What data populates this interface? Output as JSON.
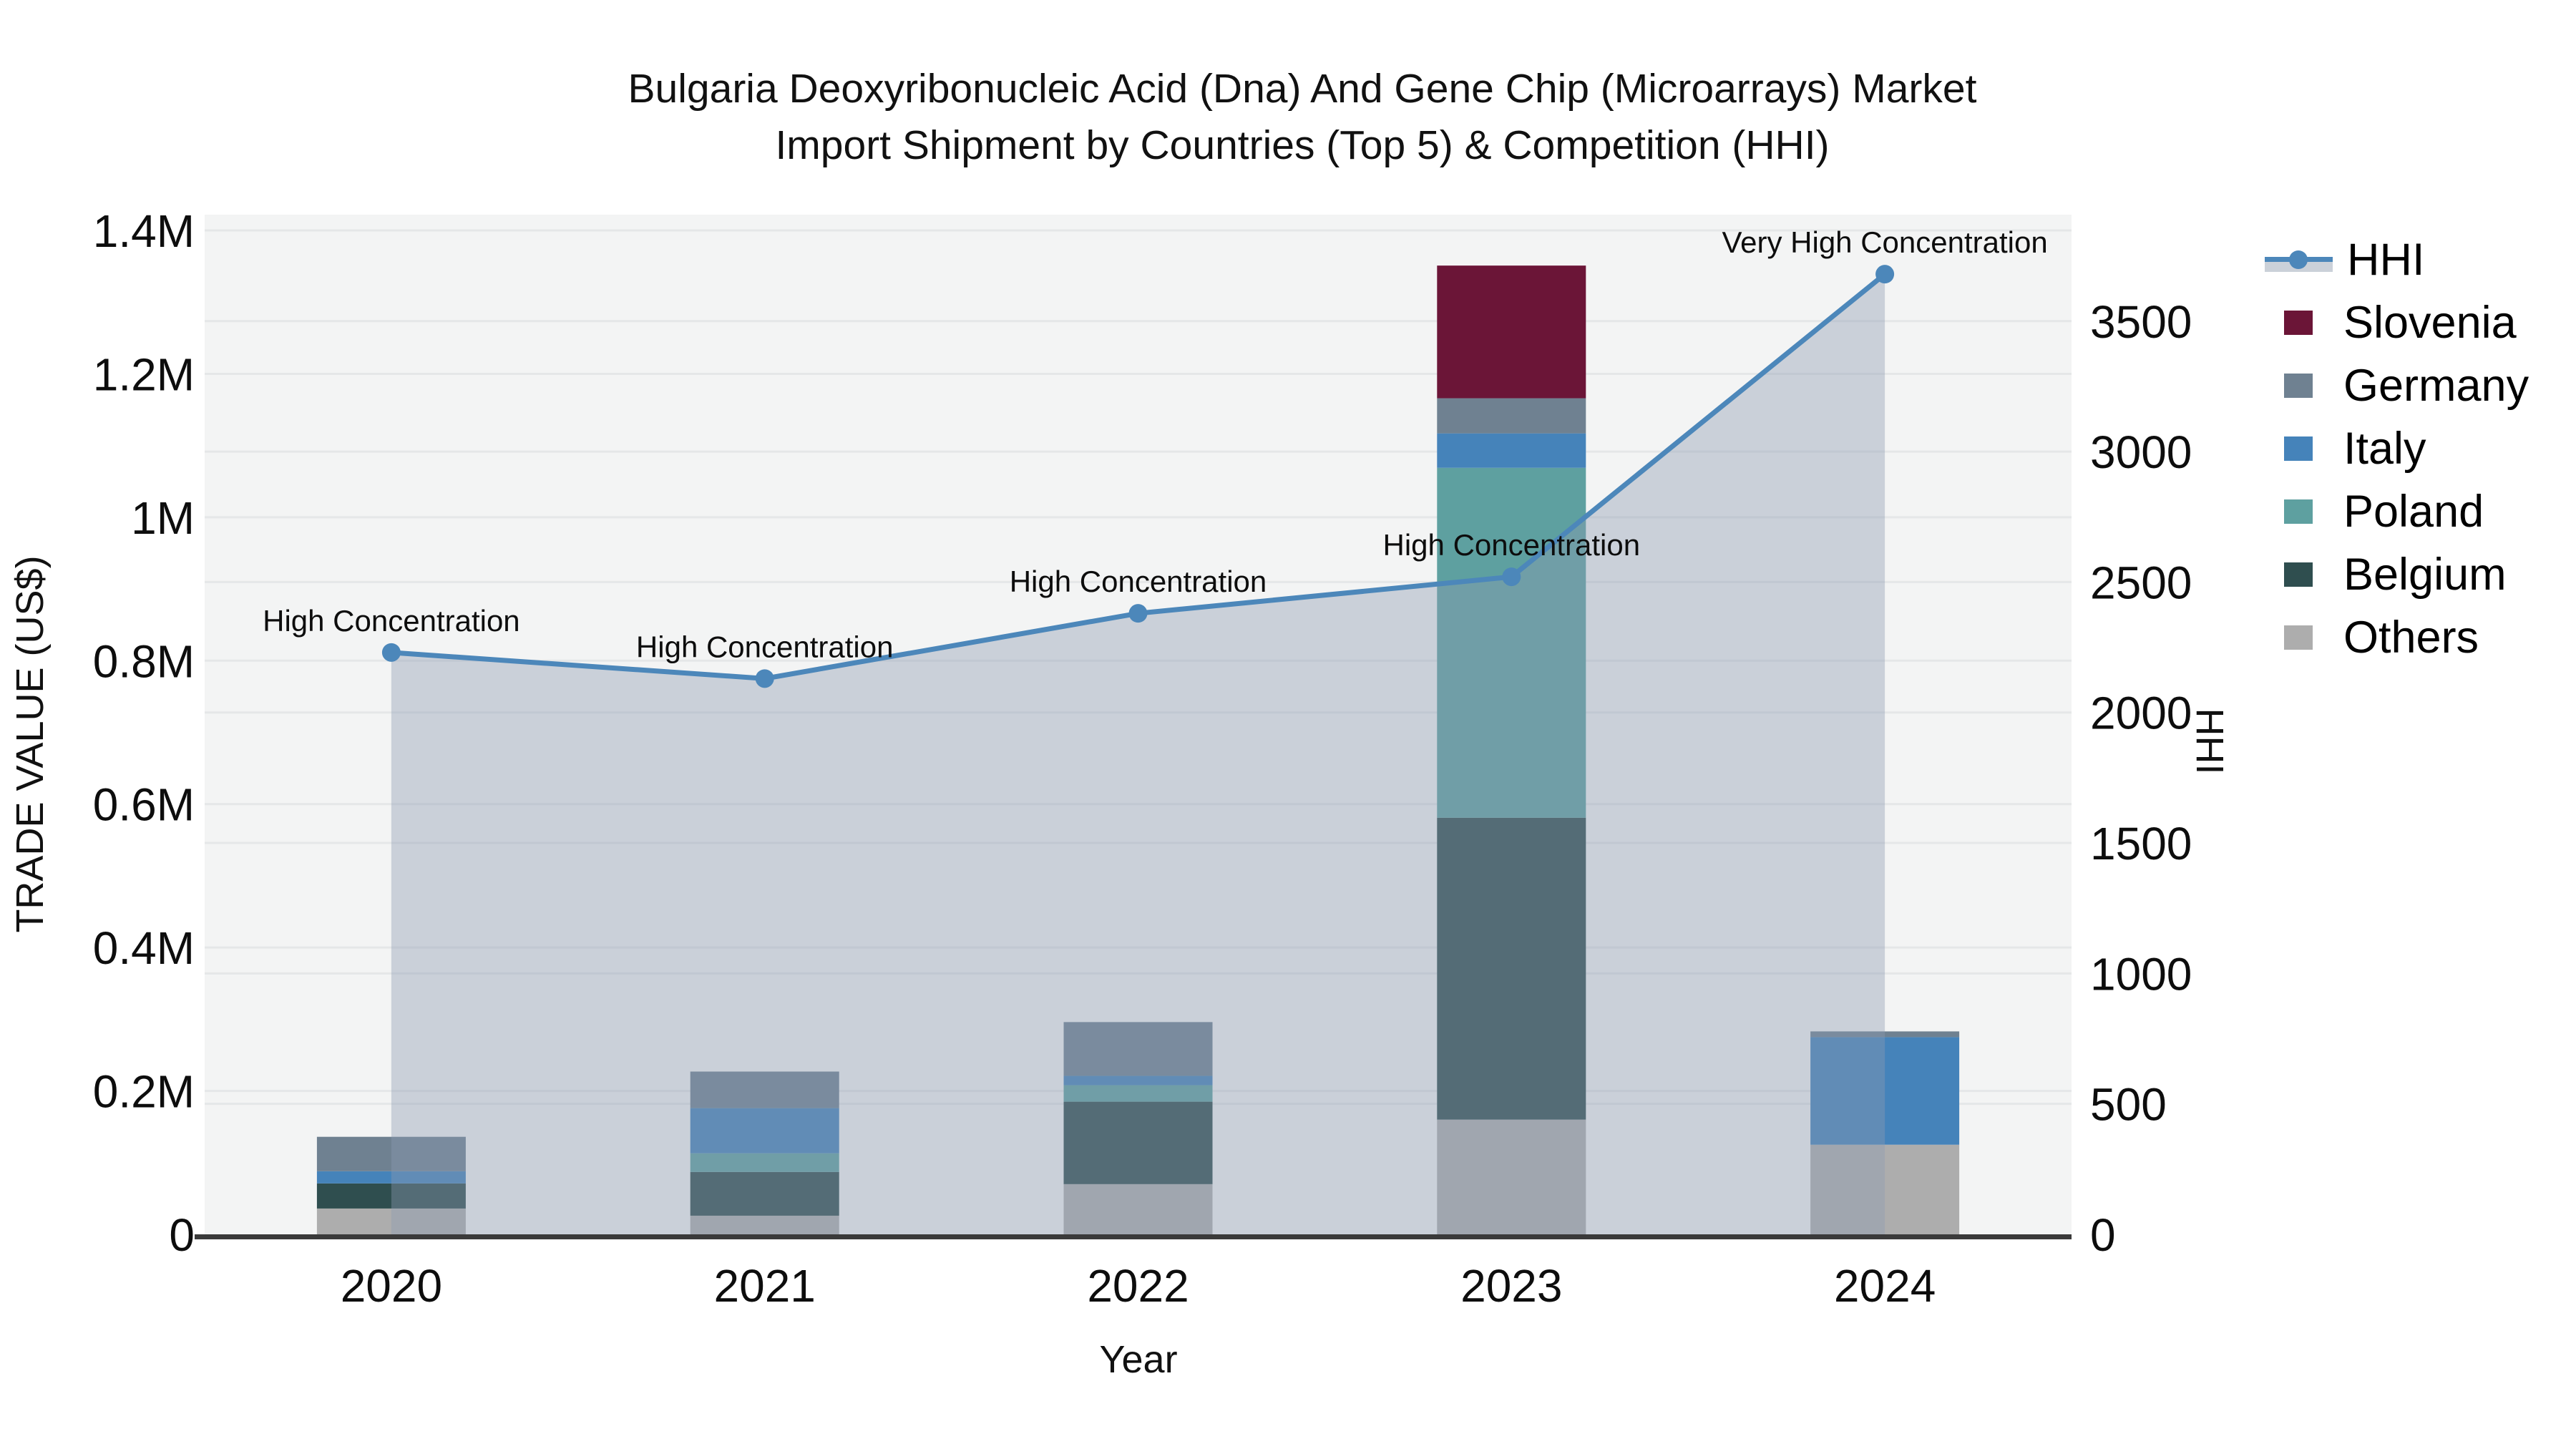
{
  "title": {
    "line1": "Bulgaria Deoxyribonucleic Acid (Dna) And Gene Chip (Microarrays) Market",
    "line2": "Import Shipment by Countries (Top 5) & Competition (HHI)"
  },
  "axes": {
    "left_title": "TRADE VALUE (US$)",
    "right_title": "HHI",
    "x_title": "Year"
  },
  "legend": {
    "items": [
      {
        "key": "hhi",
        "label": "HHI",
        "color": "#4C87BA"
      },
      {
        "key": "slovenia",
        "label": "Slovenia",
        "color": "#6B1537"
      },
      {
        "key": "germany",
        "label": "Germany",
        "color": "#6F8191"
      },
      {
        "key": "italy",
        "label": "Italy",
        "color": "#4583BA"
      },
      {
        "key": "poland",
        "label": "Poland",
        "color": "#5EA0A0"
      },
      {
        "key": "belgium",
        "label": "Belgium",
        "color": "#2F4E4F"
      },
      {
        "key": "others",
        "label": "Others",
        "color": "#ADADAD"
      }
    ]
  },
  "chart_data": {
    "type": "bar+line",
    "title": "Bulgaria Deoxyribonucleic Acid (Dna) And Gene Chip (Microarrays) Market Import Shipment by Countries (Top 5) & Competition (HHI)",
    "x": [
      "2020",
      "2021",
      "2022",
      "2023",
      "2024"
    ],
    "bar_stack_order_bottom_to_top": [
      "Others",
      "Belgium",
      "Poland",
      "Italy",
      "Germany",
      "Slovenia"
    ],
    "bar_series": [
      {
        "name": "Others",
        "color": "#ADADAD",
        "values": [
          36000,
          26000,
          70000,
          160000,
          125000
        ]
      },
      {
        "name": "Belgium",
        "color": "#2F4E4F",
        "values": [
          35000,
          61000,
          115000,
          421000,
          0
        ]
      },
      {
        "name": "Poland",
        "color": "#5EA0A0",
        "values": [
          0,
          26000,
          23000,
          488000,
          0
        ]
      },
      {
        "name": "Italy",
        "color": "#4583BA",
        "values": [
          17000,
          63000,
          13000,
          48000,
          150000
        ]
      },
      {
        "name": "Germany",
        "color": "#6F8191",
        "values": [
          48000,
          51000,
          75000,
          49000,
          8000
        ]
      },
      {
        "name": "Slovenia",
        "color": "#6B1537",
        "values": [
          0,
          0,
          0,
          185000,
          0
        ]
      }
    ],
    "line_series": {
      "name": "HHI",
      "color": "#4C87BA",
      "area_color": "rgba(141,155,178,0.40)",
      "values": [
        2230,
        2130,
        2380,
        2520,
        3680
      ]
    },
    "annotations": [
      "High Concentration",
      "High Concentration",
      "High Concentration",
      "High Concentration",
      "Very High Concentration"
    ],
    "left_axis": {
      "title": "TRADE VALUE (US$)",
      "ticks": [
        "0",
        "0.2M",
        "0.4M",
        "0.6M",
        "0.8M",
        "1M",
        "1.2M",
        "1.4M"
      ],
      "tick_values": [
        0,
        200000,
        400000,
        600000,
        800000,
        1000000,
        1200000,
        1400000
      ],
      "max": 1422000
    },
    "right_axis": {
      "title": "HHI",
      "ticks": [
        "0",
        "500",
        "1000",
        "1500",
        "2000",
        "2500",
        "3000",
        "3500"
      ],
      "tick_values": [
        0,
        500,
        1000,
        1500,
        2000,
        2500,
        3000,
        3500
      ],
      "max": 3908
    },
    "x_axis": {
      "title": "Year"
    },
    "grid": true,
    "legend_position": "right",
    "colors": {
      "plot_background": "#F3F4F4",
      "gridline": "#E5E7E8",
      "axis_line": "#3A3A3A",
      "text": "#0d0d0d"
    }
  }
}
